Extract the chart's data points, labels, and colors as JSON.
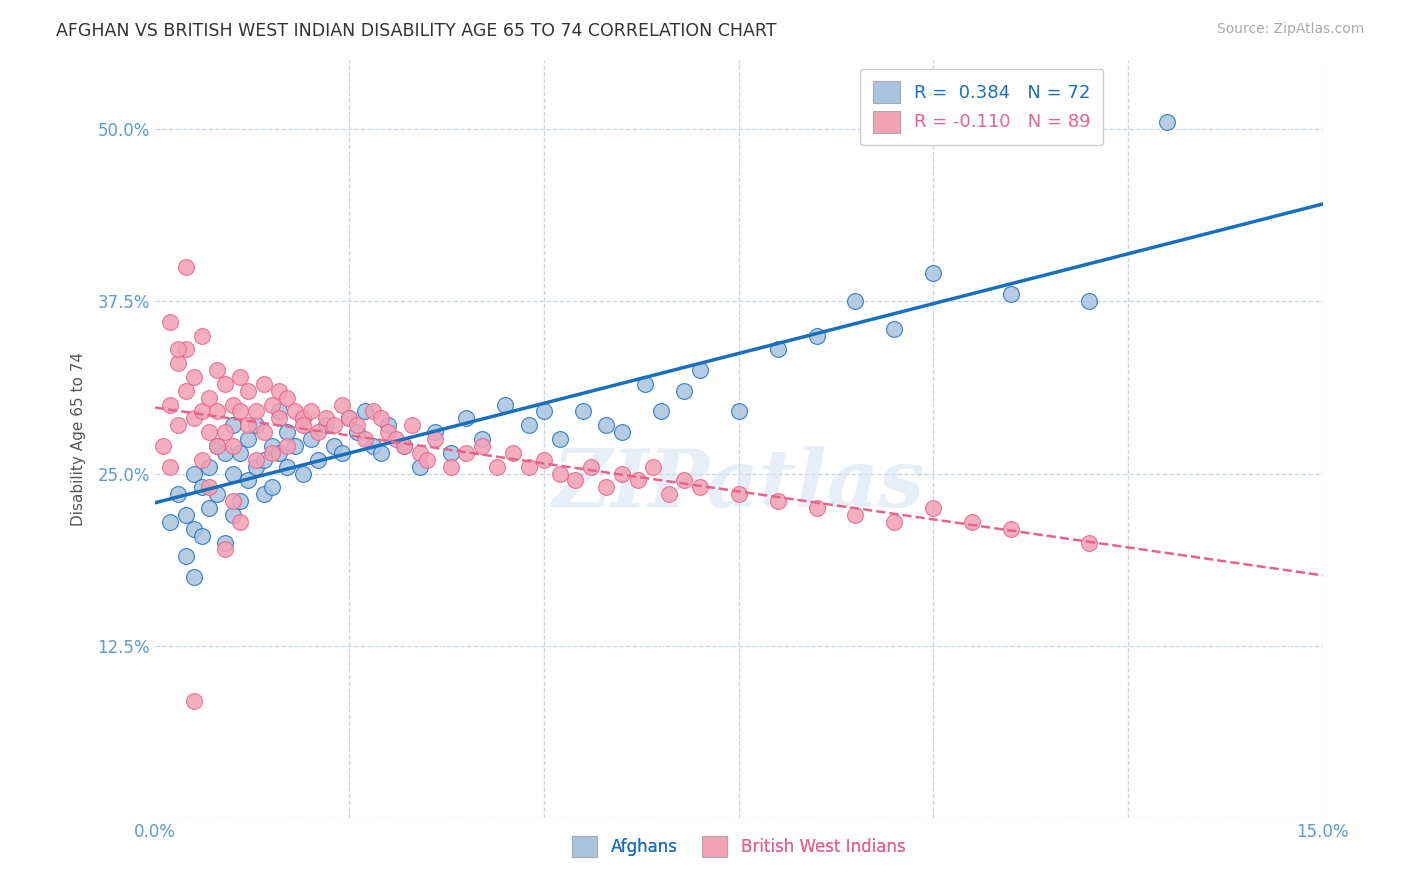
{
  "title": "AFGHAN VS BRITISH WEST INDIAN DISABILITY AGE 65 TO 74 CORRELATION CHART",
  "source": "Source: ZipAtlas.com",
  "ylabel": "Disability Age 65 to 74",
  "xlim": [
    0.0,
    0.15
  ],
  "ylim": [
    0.0,
    0.55
  ],
  "yticks": [
    0.0,
    0.125,
    0.25,
    0.375,
    0.5
  ],
  "yticklabels": [
    "",
    "12.5%",
    "25.0%",
    "37.5%",
    "50.0%"
  ],
  "xticks": [
    0.0,
    0.025,
    0.05,
    0.075,
    0.1,
    0.125,
    0.15
  ],
  "xticklabels": [
    "0.0%",
    "",
    "",
    "",
    "",
    "",
    "15.0%"
  ],
  "blue_color": "#a8c4e0",
  "pink_color": "#f4a0b5",
  "blue_line_color": "#1a6fbd",
  "pink_line_color": "#e8638a",
  "legend_blue_label": "R =  0.384   N = 72",
  "legend_pink_label": "R = -0.110   N = 89",
  "watermark": "ZIPatlas",
  "bg_color": "#ffffff",
  "grid_color": "#c8d4e8",
  "title_color": "#333333",
  "axis_label_color": "#555555",
  "tick_color": "#5b9bd5",
  "source_color": "#aaaaaa",
  "blue_scatter_x": [
    0.002,
    0.003,
    0.004,
    0.004,
    0.005,
    0.005,
    0.005,
    0.006,
    0.006,
    0.007,
    0.007,
    0.008,
    0.008,
    0.009,
    0.009,
    0.01,
    0.01,
    0.01,
    0.011,
    0.011,
    0.012,
    0.012,
    0.013,
    0.013,
    0.014,
    0.014,
    0.015,
    0.015,
    0.016,
    0.016,
    0.017,
    0.017,
    0.018,
    0.019,
    0.019,
    0.02,
    0.021,
    0.022,
    0.023,
    0.024,
    0.025,
    0.026,
    0.027,
    0.028,
    0.029,
    0.03,
    0.032,
    0.034,
    0.036,
    0.038,
    0.04,
    0.042,
    0.045,
    0.048,
    0.05,
    0.052,
    0.055,
    0.058,
    0.06,
    0.063,
    0.065,
    0.068,
    0.07,
    0.075,
    0.08,
    0.085,
    0.09,
    0.095,
    0.1,
    0.11,
    0.12,
    0.13
  ],
  "blue_scatter_y": [
    0.215,
    0.235,
    0.22,
    0.19,
    0.25,
    0.21,
    0.175,
    0.24,
    0.205,
    0.255,
    0.225,
    0.27,
    0.235,
    0.265,
    0.2,
    0.285,
    0.25,
    0.22,
    0.265,
    0.23,
    0.275,
    0.245,
    0.255,
    0.285,
    0.26,
    0.235,
    0.27,
    0.24,
    0.265,
    0.295,
    0.255,
    0.28,
    0.27,
    0.25,
    0.29,
    0.275,
    0.26,
    0.285,
    0.27,
    0.265,
    0.29,
    0.28,
    0.295,
    0.27,
    0.265,
    0.285,
    0.27,
    0.255,
    0.28,
    0.265,
    0.29,
    0.275,
    0.3,
    0.285,
    0.295,
    0.275,
    0.295,
    0.285,
    0.28,
    0.315,
    0.295,
    0.31,
    0.325,
    0.295,
    0.34,
    0.35,
    0.375,
    0.355,
    0.395,
    0.38,
    0.375,
    0.505
  ],
  "pink_scatter_x": [
    0.001,
    0.002,
    0.002,
    0.003,
    0.003,
    0.004,
    0.004,
    0.005,
    0.005,
    0.006,
    0.006,
    0.007,
    0.007,
    0.008,
    0.008,
    0.009,
    0.009,
    0.01,
    0.01,
    0.011,
    0.011,
    0.012,
    0.012,
    0.013,
    0.013,
    0.014,
    0.014,
    0.015,
    0.015,
    0.016,
    0.016,
    0.017,
    0.017,
    0.018,
    0.019,
    0.019,
    0.02,
    0.021,
    0.022,
    0.023,
    0.024,
    0.025,
    0.026,
    0.027,
    0.028,
    0.029,
    0.03,
    0.031,
    0.032,
    0.033,
    0.034,
    0.035,
    0.036,
    0.038,
    0.04,
    0.042,
    0.044,
    0.046,
    0.048,
    0.05,
    0.052,
    0.054,
    0.056,
    0.058,
    0.06,
    0.062,
    0.064,
    0.066,
    0.068,
    0.07,
    0.075,
    0.08,
    0.085,
    0.09,
    0.095,
    0.1,
    0.105,
    0.11,
    0.12,
    0.002,
    0.003,
    0.004,
    0.005,
    0.006,
    0.007,
    0.008,
    0.009,
    0.01,
    0.011
  ],
  "pink_scatter_y": [
    0.27,
    0.3,
    0.255,
    0.33,
    0.285,
    0.34,
    0.31,
    0.29,
    0.32,
    0.35,
    0.295,
    0.305,
    0.28,
    0.325,
    0.295,
    0.315,
    0.28,
    0.3,
    0.27,
    0.32,
    0.295,
    0.285,
    0.31,
    0.295,
    0.26,
    0.315,
    0.28,
    0.3,
    0.265,
    0.31,
    0.29,
    0.305,
    0.27,
    0.295,
    0.29,
    0.285,
    0.295,
    0.28,
    0.29,
    0.285,
    0.3,
    0.29,
    0.285,
    0.275,
    0.295,
    0.29,
    0.28,
    0.275,
    0.27,
    0.285,
    0.265,
    0.26,
    0.275,
    0.255,
    0.265,
    0.27,
    0.255,
    0.265,
    0.255,
    0.26,
    0.25,
    0.245,
    0.255,
    0.24,
    0.25,
    0.245,
    0.255,
    0.235,
    0.245,
    0.24,
    0.235,
    0.23,
    0.225,
    0.22,
    0.215,
    0.225,
    0.215,
    0.21,
    0.2,
    0.36,
    0.34,
    0.4,
    0.085,
    0.26,
    0.24,
    0.27,
    0.195,
    0.23,
    0.215
  ]
}
